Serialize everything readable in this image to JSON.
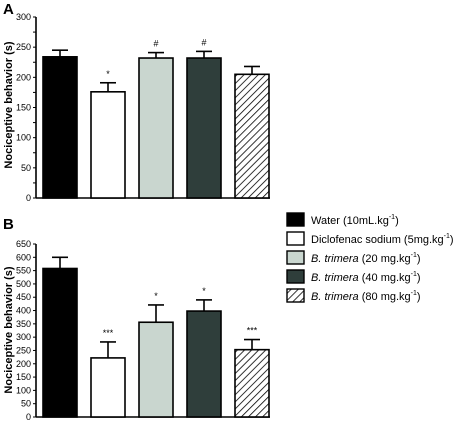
{
  "chart_data": [
    {
      "type": "bar",
      "panel": "A",
      "ylabel": "Nociceptive behavior (s)",
      "ylim": [
        0,
        300
      ],
      "yticks": [
        0,
        25,
        50,
        75,
        100,
        125,
        150,
        175,
        200,
        225,
        250,
        275,
        300
      ],
      "categories": [
        "Water",
        "Diclofenac sodium",
        "B. trimera 20",
        "B. trimera 40",
        "B. trimera 80"
      ],
      "values": [
        234,
        176,
        232,
        232,
        205
      ],
      "errors": [
        11,
        15,
        9,
        11,
        13
      ],
      "significance": [
        "",
        "*",
        "#",
        "#",
        ""
      ],
      "grid": false
    },
    {
      "type": "bar",
      "panel": "B",
      "ylabel": "Nociceptive behavior (s)",
      "ylim": [
        0,
        650
      ],
      "yticks": [
        0,
        50,
        100,
        150,
        200,
        250,
        300,
        350,
        400,
        450,
        500,
        550,
        600,
        650
      ],
      "categories": [
        "Water",
        "Diclofenac sodium",
        "B. trimera 20",
        "B. trimera 40",
        "B. trimera 80"
      ],
      "values": [
        558,
        222,
        356,
        398,
        253
      ],
      "errors": [
        42,
        60,
        65,
        42,
        38
      ],
      "significance": [
        "",
        "***",
        "*",
        "*",
        "***"
      ],
      "grid": false
    }
  ],
  "legend": {
    "placement": "right",
    "items": [
      {
        "pre": "Water (10mL.kg",
        "ital": "",
        "sup": "-1",
        "post": ")"
      },
      {
        "pre": "Diclofenac sodium (5mg.kg",
        "ital": "",
        "sup": "-1",
        "post": ")"
      },
      {
        "pre": "",
        "ital": "B. trimera",
        "mid": " (20 mg.kg",
        "sup": "-1",
        "post": ")"
      },
      {
        "pre": "",
        "ital": "B. trimera",
        "mid": " (40 mg.kg",
        "sup": "-1",
        "post": ")"
      },
      {
        "pre": "",
        "ital": "B. trimera",
        "mid": " (80 mg.kg",
        "sup": "-1",
        "post": ")"
      }
    ]
  },
  "colors": {
    "water": "#000000",
    "diclofenac": "#ffffff",
    "bt20": "#c9d6cf",
    "bt40": "#2f3e3b",
    "bt80": "hatched",
    "stroke": "#000000"
  }
}
